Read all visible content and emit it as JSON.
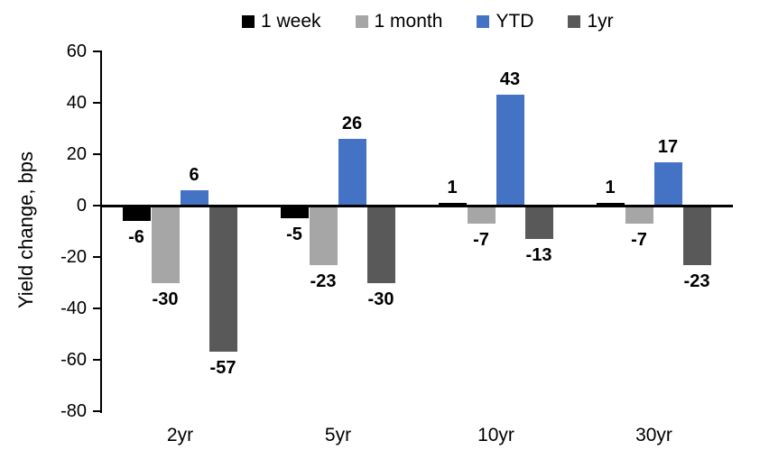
{
  "chart_data": {
    "type": "bar",
    "title": "",
    "ylabel": "Yield change, bps",
    "xlabel": "",
    "categories": [
      "2yr",
      "5yr",
      "10yr",
      "30yr"
    ],
    "series": [
      {
        "name": "1 week",
        "color": "#000000",
        "values": [
          -6,
          -5,
          1,
          1
        ]
      },
      {
        "name": "1 month",
        "color": "#A6A6A6",
        "values": [
          -30,
          -23,
          -7,
          -7
        ]
      },
      {
        "name": "YTD",
        "color": "#4472C4",
        "values": [
          6,
          26,
          43,
          17
        ]
      },
      {
        "name": "1yr",
        "color": "#595959",
        "values": [
          -57,
          -30,
          -13,
          -23
        ]
      }
    ],
    "ylim": [
      -80,
      60
    ],
    "y_ticks": [
      60,
      40,
      20,
      0,
      -20,
      -40,
      -60,
      -80
    ],
    "grid": false,
    "legend_position": "top",
    "data_labels": true,
    "axis_color": "#000000"
  }
}
